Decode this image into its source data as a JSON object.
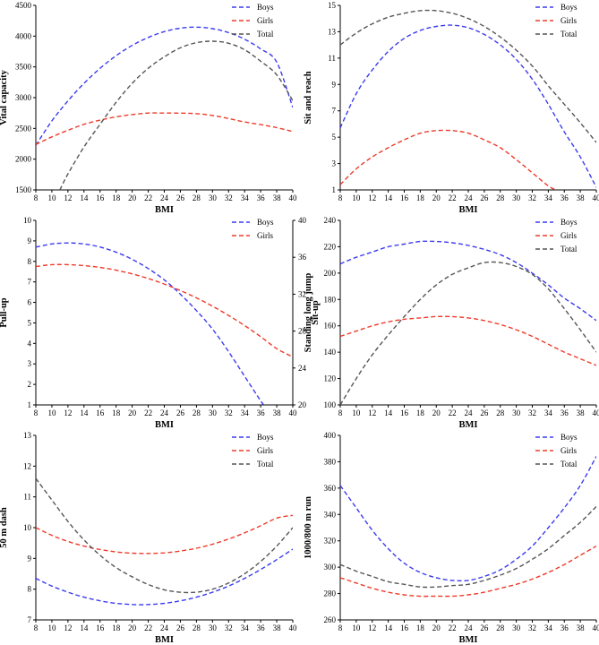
{
  "colors": {
    "boys": "#3b3bf0",
    "girls": "#ee3b2b",
    "total": "#555555",
    "axis": "#000000"
  },
  "chart_data": [
    {
      "type": "line",
      "xlabel": "BMI",
      "ylabel": "Vital capacity",
      "xlim": [
        8,
        40
      ],
      "ylim": [
        1500,
        4500
      ],
      "xticks": [
        8,
        10,
        12,
        14,
        16,
        18,
        20,
        22,
        24,
        26,
        28,
        30,
        32,
        34,
        36,
        38,
        40
      ],
      "yticks": [
        1500,
        2000,
        2500,
        3000,
        3500,
        4000,
        4500
      ],
      "legend_position": "top-right",
      "series": [
        {
          "name": "Boys",
          "color_key": "boys",
          "x": [
            8,
            10,
            12,
            14,
            16,
            18,
            20,
            22,
            24,
            26,
            28,
            30,
            32,
            34,
            36,
            38,
            40
          ],
          "y": [
            2225,
            2621,
            2948,
            3232,
            3477,
            3682,
            3849,
            3979,
            4073,
            4129,
            4146,
            4122,
            4058,
            3950,
            3792,
            3576,
            2840
          ]
        },
        {
          "name": "Girls",
          "color_key": "girls",
          "x": [
            8,
            10,
            12,
            14,
            16,
            18,
            20,
            22,
            24,
            26,
            28,
            30,
            32,
            34,
            36,
            38,
            40
          ],
          "y": [
            2240,
            2362,
            2470,
            2566,
            2634,
            2688,
            2725,
            2749,
            2750,
            2748,
            2740,
            2710,
            2660,
            2604,
            2562,
            2512,
            2450
          ]
        },
        {
          "name": "Total",
          "color_key": "total",
          "x": [
            11,
            12,
            14,
            16,
            18,
            20,
            22,
            24,
            26,
            28,
            30,
            32,
            34,
            36,
            38,
            40
          ],
          "y": [
            1500,
            1760,
            2198,
            2568,
            2924,
            3232,
            3478,
            3663,
            3810,
            3893,
            3918,
            3884,
            3778,
            3592,
            3370,
            2950
          ]
        }
      ]
    },
    {
      "type": "line",
      "xlabel": "BMI",
      "ylabel": "Sit and reach",
      "xlim": [
        8,
        40
      ],
      "ylim": [
        1,
        15
      ],
      "xticks": [
        8,
        10,
        12,
        14,
        16,
        18,
        20,
        22,
        24,
        26,
        28,
        30,
        32,
        34,
        36,
        38,
        40
      ],
      "yticks": [
        1,
        3,
        5,
        7,
        9,
        11,
        13,
        15
      ],
      "legend_position": "top-right",
      "series": [
        {
          "name": "Boys",
          "color_key": "boys",
          "x": [
            8,
            10,
            12,
            14,
            16,
            18,
            20,
            22,
            24,
            26,
            28,
            30,
            32,
            34,
            36,
            38,
            40
          ],
          "y": [
            5.7,
            8.3,
            10.1,
            11.5,
            12.5,
            13.1,
            13.4,
            13.5,
            13.3,
            12.8,
            12.0,
            10.9,
            9.4,
            7.5,
            5.4,
            3.5,
            1.2
          ]
        },
        {
          "name": "Girls",
          "color_key": "girls",
          "x": [
            8,
            10,
            12,
            14,
            16,
            18,
            20,
            22,
            24,
            26,
            28,
            30,
            32,
            34,
            35
          ],
          "y": [
            1.4,
            2.6,
            3.5,
            4.2,
            4.8,
            5.3,
            5.5,
            5.5,
            5.3,
            4.8,
            4.2,
            3.3,
            2.3,
            1.3,
            1.0
          ]
        },
        {
          "name": "Total",
          "color_key": "total",
          "x": [
            8,
            10,
            12,
            14,
            16,
            18,
            20,
            22,
            24,
            26,
            28,
            30,
            32,
            34,
            36,
            38,
            40
          ],
          "y": [
            12.0,
            12.9,
            13.6,
            14.1,
            14.4,
            14.6,
            14.6,
            14.4,
            14.0,
            13.4,
            12.6,
            11.6,
            10.4,
            8.9,
            7.5,
            6.1,
            4.6
          ]
        }
      ]
    },
    {
      "type": "line",
      "xlabel": "BMI",
      "ylabel": "Pull-up",
      "ylabel_right": "Sit-up",
      "xlim": [
        8,
        40
      ],
      "ylim": [
        1,
        10
      ],
      "ylim_right": [
        20,
        40
      ],
      "xticks": [
        8,
        10,
        12,
        14,
        16,
        18,
        20,
        22,
        24,
        26,
        28,
        30,
        32,
        34,
        36,
        38,
        40
      ],
      "yticks": [
        1,
        2,
        3,
        4,
        5,
        6,
        7,
        8,
        9,
        10
      ],
      "yticks_right": [
        20,
        24,
        28,
        32,
        36,
        40
      ],
      "legend_position": "top-right",
      "series": [
        {
          "name": "Boys",
          "color_key": "boys",
          "axis": "left",
          "x": [
            8,
            10,
            12,
            14,
            16,
            18,
            20,
            22,
            24,
            26,
            28,
            30,
            32,
            34,
            36,
            36.5
          ],
          "y": [
            8.7,
            8.85,
            8.9,
            8.85,
            8.7,
            8.45,
            8.1,
            7.65,
            7.1,
            6.4,
            5.6,
            4.7,
            3.6,
            2.4,
            1.2,
            0.95
          ]
        },
        {
          "name": "Girls",
          "color_key": "girls",
          "axis": "right",
          "x": [
            8,
            10,
            12,
            14,
            16,
            18,
            20,
            22,
            24,
            26,
            28,
            30,
            32,
            34,
            36,
            38,
            40
          ],
          "y": [
            35.0,
            35.2,
            35.2,
            35.1,
            34.9,
            34.6,
            34.2,
            33.7,
            33.1,
            32.4,
            31.6,
            30.7,
            29.7,
            28.6,
            27.4,
            26.1,
            25.2
          ]
        }
      ]
    },
    {
      "type": "line",
      "xlabel": "BMI",
      "ylabel": "Standing long jump",
      "xlim": [
        8,
        40
      ],
      "ylim": [
        100,
        240
      ],
      "xticks": [
        8,
        10,
        12,
        14,
        16,
        18,
        20,
        22,
        24,
        26,
        28,
        30,
        32,
        34,
        36,
        38,
        40
      ],
      "yticks": [
        100,
        120,
        140,
        160,
        180,
        200,
        220,
        240
      ],
      "legend_position": "top-right",
      "series": [
        {
          "name": "Boys",
          "color_key": "boys",
          "x": [
            8,
            10,
            12,
            14,
            16,
            18,
            20,
            22,
            24,
            26,
            28,
            30,
            32,
            34,
            36,
            38,
            40
          ],
          "y": [
            207,
            212,
            216,
            220,
            222,
            224,
            224,
            223,
            221,
            218,
            214,
            208,
            200,
            191,
            181,
            173,
            164
          ]
        },
        {
          "name": "Girls",
          "color_key": "girls",
          "x": [
            8,
            10,
            12,
            14,
            16,
            18,
            20,
            22,
            24,
            26,
            28,
            30,
            32,
            34,
            36,
            38,
            40
          ],
          "y": [
            152,
            156,
            160,
            163,
            165,
            166,
            167,
            167,
            166,
            164,
            161,
            157,
            152,
            146,
            140,
            135,
            130
          ]
        },
        {
          "name": "Total",
          "color_key": "total",
          "x": [
            8,
            10,
            12,
            14,
            16,
            18,
            20,
            22,
            24,
            26,
            28,
            30,
            32,
            34,
            36,
            38,
            40
          ],
          "y": [
            100,
            120,
            138,
            153,
            167,
            180,
            191,
            199,
            204,
            208,
            208,
            205,
            199,
            188,
            173,
            157,
            140
          ]
        }
      ]
    },
    {
      "type": "line",
      "xlabel": "BMI",
      "ylabel": "50 m dash",
      "xlim": [
        8,
        40
      ],
      "ylim": [
        7,
        13
      ],
      "xticks": [
        8,
        10,
        12,
        14,
        16,
        18,
        20,
        22,
        24,
        26,
        28,
        30,
        32,
        34,
        36,
        38,
        40
      ],
      "yticks": [
        7,
        8,
        9,
        10,
        11,
        12,
        13
      ],
      "legend_position": "top-right",
      "series": [
        {
          "name": "Boys",
          "color_key": "boys",
          "x": [
            8,
            10,
            12,
            14,
            16,
            18,
            20,
            22,
            24,
            26,
            28,
            30,
            32,
            34,
            36,
            38,
            40
          ],
          "y": [
            8.35,
            8.1,
            7.9,
            7.74,
            7.62,
            7.54,
            7.5,
            7.5,
            7.54,
            7.62,
            7.74,
            7.9,
            8.1,
            8.35,
            8.64,
            8.96,
            9.3
          ]
        },
        {
          "name": "Girls",
          "color_key": "girls",
          "x": [
            8,
            10,
            12,
            14,
            16,
            18,
            20,
            22,
            24,
            26,
            28,
            30,
            32,
            34,
            36,
            38,
            40
          ],
          "y": [
            10.0,
            9.75,
            9.55,
            9.4,
            9.29,
            9.21,
            9.17,
            9.16,
            9.18,
            9.24,
            9.33,
            9.46,
            9.63,
            9.83,
            10.06,
            10.31,
            10.4
          ]
        },
        {
          "name": "Total",
          "color_key": "total",
          "x": [
            8,
            10,
            12,
            14,
            16,
            18,
            20,
            22,
            24,
            26,
            28,
            30,
            32,
            34,
            36,
            38,
            40
          ],
          "y": [
            11.6,
            10.9,
            10.2,
            9.6,
            9.1,
            8.7,
            8.4,
            8.15,
            7.98,
            7.9,
            7.9,
            8.0,
            8.2,
            8.5,
            8.9,
            9.4,
            10.0
          ]
        }
      ]
    },
    {
      "type": "line",
      "xlabel": "BMI",
      "ylabel": "1000/800 m run",
      "xlim": [
        8,
        40
      ],
      "ylim": [
        260,
        400
      ],
      "xticks": [
        8,
        10,
        12,
        14,
        16,
        18,
        20,
        22,
        24,
        26,
        28,
        30,
        32,
        34,
        36,
        38,
        40
      ],
      "yticks": [
        260,
        280,
        300,
        320,
        340,
        360,
        380,
        400
      ],
      "legend_position": "top-right",
      "series": [
        {
          "name": "Boys",
          "color_key": "boys",
          "x": [
            8,
            10,
            12,
            14,
            16,
            18,
            20,
            22,
            24,
            26,
            28,
            30,
            32,
            34,
            36,
            38,
            40
          ],
          "y": [
            362,
            345,
            328,
            314,
            303,
            296,
            292,
            290,
            290,
            293,
            298,
            306,
            316,
            330,
            345,
            362,
            384
          ]
        },
        {
          "name": "Girls",
          "color_key": "girls",
          "x": [
            8,
            10,
            12,
            14,
            16,
            18,
            20,
            22,
            24,
            26,
            28,
            30,
            32,
            34,
            36,
            38,
            40
          ],
          "y": [
            292,
            288,
            284,
            281,
            279,
            278,
            278,
            278,
            279,
            281,
            284,
            287,
            291,
            296,
            302,
            309,
            316
          ]
        },
        {
          "name": "Total",
          "color_key": "total",
          "x": [
            8,
            10,
            12,
            14,
            16,
            18,
            20,
            22,
            24,
            26,
            28,
            30,
            32,
            34,
            36,
            38,
            40
          ],
          "y": [
            302,
            297,
            293,
            289,
            287,
            285,
            285,
            286,
            287,
            290,
            294,
            299,
            306,
            314,
            324,
            334,
            346
          ]
        }
      ]
    }
  ]
}
